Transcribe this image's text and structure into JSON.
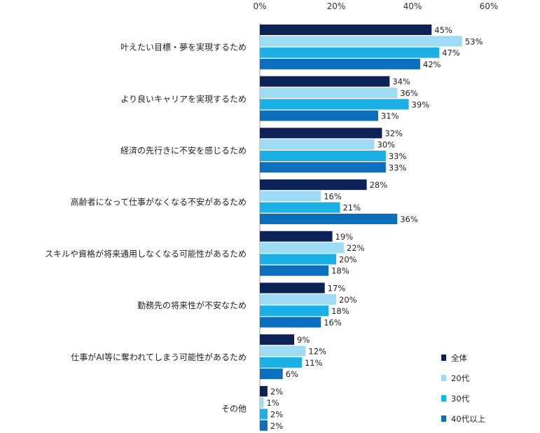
{
  "chart_data": {
    "type": "bar",
    "orientation": "horizontal",
    "xlim": [
      0,
      60
    ],
    "x_ticks": [
      "0%",
      "20%",
      "40%",
      "60%"
    ],
    "x_tick_values": [
      0,
      20,
      40,
      60
    ],
    "grid": false,
    "legend_position": "bottom-right",
    "value_suffix": "%",
    "categories": [
      "叶えたい目標・夢を実現するため",
      "より良いキャリアを実現するため",
      "経済の先行きに不安を感じるため",
      "高齢者になって仕事がなくなる不安があるため",
      "スキルや資格が将来通用しなくなる可能性があるため",
      "勤務先の将来性が不安なため",
      "仕事がAI等に奪われてしまう可能性があるため",
      "その他"
    ],
    "series": [
      {
        "name": "全体",
        "color": "#0d2357",
        "values": [
          45,
          34,
          32,
          28,
          19,
          17,
          9,
          2
        ]
      },
      {
        "name": "20代",
        "color": "#9edcf5",
        "values": [
          53,
          36,
          30,
          16,
          22,
          20,
          12,
          1
        ]
      },
      {
        "name": "30代",
        "color": "#1ab0e6",
        "values": [
          47,
          39,
          33,
          21,
          20,
          18,
          11,
          2
        ]
      },
      {
        "name": "40代以上",
        "color": "#0b6fbe",
        "values": [
          42,
          31,
          33,
          36,
          18,
          16,
          6,
          2
        ]
      }
    ]
  }
}
